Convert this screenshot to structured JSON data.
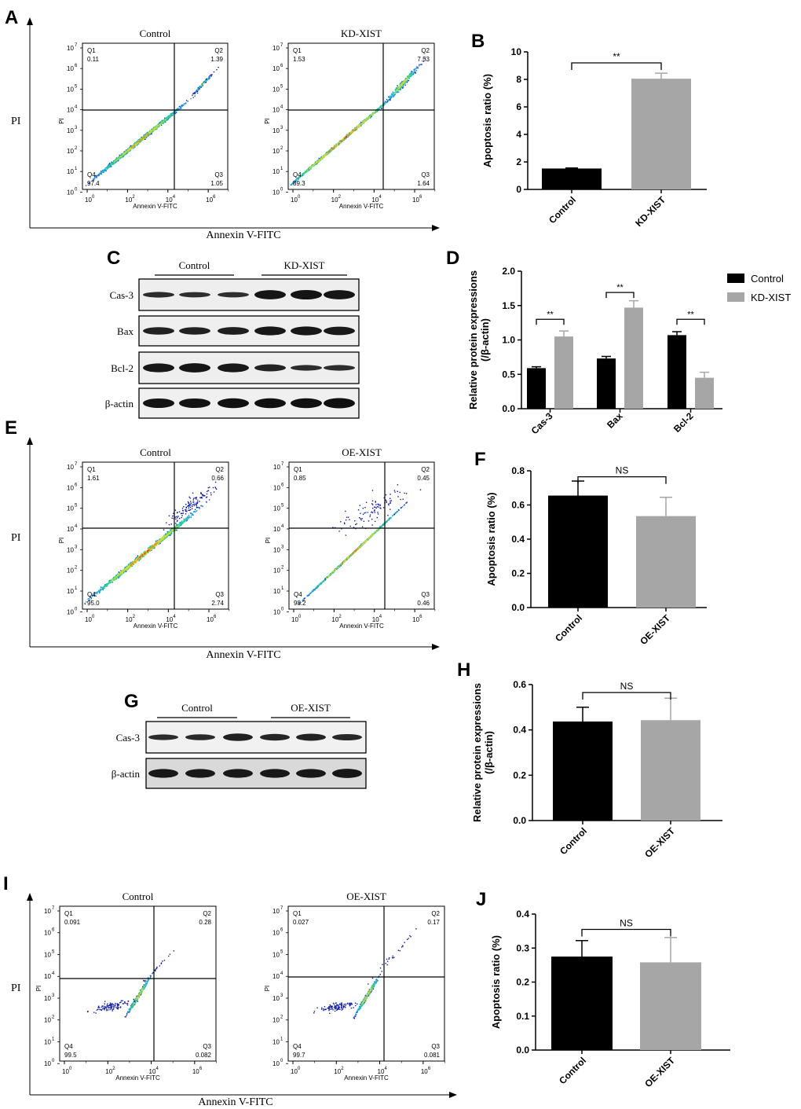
{
  "panels": [
    {
      "id": "A",
      "label": "A"
    },
    {
      "id": "B",
      "label": "B"
    },
    {
      "id": "C",
      "label": "C"
    },
    {
      "id": "D",
      "label": "D"
    },
    {
      "id": "E",
      "label": "E"
    },
    {
      "id": "F",
      "label": "F"
    },
    {
      "id": "G",
      "label": "G"
    },
    {
      "id": "H",
      "label": "H"
    },
    {
      "id": "I",
      "label": "I"
    },
    {
      "id": "J",
      "label": "J"
    }
  ],
  "flow_axis_labels": {
    "y": "PI",
    "x": "Annexin V-FITC",
    "inner_y": "PI",
    "inner_x": "Annexin V-FITC"
  },
  "flow_tick_labels": [
    "10",
    "0",
    "10",
    "2",
    "10",
    "4",
    "10",
    "6",
    "10",
    "7",
    "10",
    "5",
    "10",
    "3",
    "10",
    "1"
  ],
  "flow_exponents_x": [
    "0",
    "2",
    "4",
    "6"
  ],
  "flow_exponents_y": [
    "7",
    "6",
    "5",
    "4",
    "3",
    "2",
    "1",
    "0"
  ],
  "chart_data": [
    {
      "id": "flow-A-control",
      "type": "scatter",
      "title": "Control",
      "xlabel": "Annexin V-FITC",
      "ylabel": "PI",
      "scale": "log",
      "quadrants": {
        "Q1": "0.11",
        "Q2": "1.39",
        "Q3": "1.05",
        "Q4": "97.4"
      }
    },
    {
      "id": "flow-A-kd",
      "type": "scatter",
      "title": "KD-XIST",
      "xlabel": "Annexin V-FITC",
      "ylabel": "PI",
      "scale": "log",
      "quadrants": {
        "Q1": "1.53",
        "Q2": "7.53",
        "Q3": "1.64",
        "Q4": "89.3"
      }
    },
    {
      "id": "B",
      "type": "bar",
      "ylabel": "Apoptosis ratio (%)",
      "ylim": [
        0,
        10
      ],
      "yticks": [
        "0",
        "2",
        "4",
        "6",
        "8",
        "10"
      ],
      "categories": [
        "Control",
        "KD-XIST"
      ],
      "values": [
        1.52,
        8.05
      ],
      "errors": [
        0.04,
        0.4
      ],
      "colors": [
        "#000000",
        "#a6a6a6"
      ],
      "significance": [
        {
          "between": [
            0,
            1
          ],
          "label": "**",
          "y": 9.2
        }
      ]
    },
    {
      "id": "C",
      "type": "table",
      "groups": [
        "Control",
        "KD-XIST"
      ],
      "rows": [
        "Cas-3",
        "Bax",
        "Bcl-2",
        "β-actin"
      ]
    },
    {
      "id": "D",
      "type": "bar",
      "ylabel": "Relative protein expressions\n(/β-actin)",
      "ylim": [
        0,
        2.0
      ],
      "yticks": [
        "0.0",
        "0.5",
        "1.0",
        "1.5",
        "2.0"
      ],
      "categories": [
        "Cas-3",
        "Bax",
        "Bcl-2"
      ],
      "series": [
        {
          "name": "Control",
          "values": [
            0.59,
            0.73,
            1.07
          ],
          "errors": [
            0.02,
            0.03,
            0.05
          ],
          "color": "#000000"
        },
        {
          "name": "KD-XIST",
          "values": [
            1.05,
            1.47,
            0.45
          ],
          "errors": [
            0.08,
            0.1,
            0.08
          ],
          "color": "#a6a6a6"
        }
      ],
      "significance": [
        {
          "category": 0,
          "label": "**",
          "y": 1.3
        },
        {
          "category": 1,
          "label": "**",
          "y": 1.69
        },
        {
          "category": 2,
          "label": "**",
          "y": 1.3
        }
      ],
      "legend": "top-right"
    },
    {
      "id": "flow-E-control",
      "type": "scatter",
      "title": "Control",
      "xlabel": "Annexin V-FITC",
      "ylabel": "PI",
      "scale": "log",
      "quadrants": {
        "Q1": "1.61",
        "Q2": "0.66",
        "Q3": "2.74",
        "Q4": "95.0"
      }
    },
    {
      "id": "flow-E-oe",
      "type": "scatter",
      "title": "OE-XIST",
      "xlabel": "Annexin V-FITC",
      "ylabel": "PI",
      "scale": "log",
      "quadrants": {
        "Q1": "0.85",
        "Q2": "0.45",
        "Q3": "0.46",
        "Q4": "98.2"
      }
    },
    {
      "id": "F",
      "type": "bar",
      "ylabel": "Apoptosis ratio (%)",
      "ylim": [
        0,
        0.8
      ],
      "yticks": [
        "0.0",
        "0.2",
        "0.4",
        "0.6",
        "0.8"
      ],
      "categories": [
        "Control",
        "OE-XIST"
      ],
      "values": [
        0.655,
        0.535
      ],
      "errors": [
        0.085,
        0.11
      ],
      "colors": [
        "#000000",
        "#a6a6a6"
      ],
      "significance": [
        {
          "between": [
            0,
            1
          ],
          "label": "NS",
          "y": 0.765
        }
      ]
    },
    {
      "id": "G",
      "type": "table",
      "groups": [
        "Control",
        "OE-XIST"
      ],
      "rows": [
        "Cas-3",
        "β-actin"
      ]
    },
    {
      "id": "H",
      "type": "bar",
      "ylabel": "Relative protein expressions\n(/β-actin)",
      "ylim": [
        0,
        0.6
      ],
      "yticks": [
        "0.0",
        "0.2",
        "0.4",
        "0.6"
      ],
      "categories": [
        "Control",
        "OE-XIST"
      ],
      "values": [
        0.437,
        0.443
      ],
      "errors": [
        0.063,
        0.097
      ],
      "colors": [
        "#000000",
        "#a6a6a6"
      ],
      "significance": [
        {
          "between": [
            0,
            1
          ],
          "label": "NS",
          "y": 0.565
        }
      ]
    },
    {
      "id": "flow-I-control",
      "type": "scatter",
      "title": "Control",
      "xlabel": "Annexin V-FITC",
      "ylabel": "PI",
      "scale": "log",
      "quadrants": {
        "Q1": "0.091",
        "Q2": "0.28",
        "Q3": "0.082",
        "Q4": "99.5"
      }
    },
    {
      "id": "flow-I-oe",
      "type": "scatter",
      "title": "OE-XIST",
      "xlabel": "Annexin V-FITC",
      "ylabel": "PI",
      "scale": "log",
      "quadrants": {
        "Q1": "0.027",
        "Q2": "0.17",
        "Q3": "0.081",
        "Q4": "99.7"
      }
    },
    {
      "id": "J",
      "type": "bar",
      "ylabel": "Apoptosis ratio (%)",
      "ylim": [
        0,
        0.4
      ],
      "yticks": [
        "0.0",
        "0.1",
        "0.2",
        "0.3",
        "0.4"
      ],
      "categories": [
        "Control",
        "OE-XIST"
      ],
      "values": [
        0.275,
        0.258
      ],
      "errors": [
        0.047,
        0.073
      ],
      "colors": [
        "#000000",
        "#a6a6a6"
      ],
      "significance": [
        {
          "between": [
            0,
            1
          ],
          "label": "NS",
          "y": 0.355
        }
      ]
    }
  ]
}
